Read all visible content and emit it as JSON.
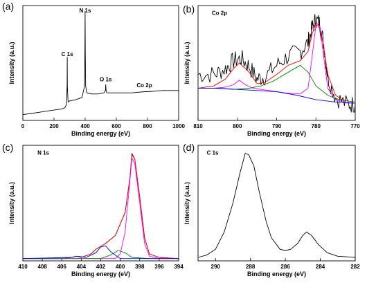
{
  "chart_data": [
    {
      "panel": "(a)",
      "type": "line",
      "xlabel": "Binding energy (eV)",
      "ylabel": "Intensity (a.u.)",
      "xlim": [
        0,
        1000
      ],
      "ylim": [
        0,
        1
      ],
      "xticks": [
        0,
        200,
        400,
        600,
        800,
        1000
      ],
      "x_reversed": false,
      "annotations": [
        {
          "text": "C 1s",
          "x": 285,
          "y": 0.56
        },
        {
          "text": "N 1s",
          "x": 400,
          "y": 0.94
        },
        {
          "text": "O 1s",
          "x": 532,
          "y": 0.34
        },
        {
          "text": "Co 2p",
          "x": 780,
          "y": 0.29
        }
      ],
      "series": [
        {
          "color": "#000000",
          "points": [
            [
              0,
              0.05
            ],
            [
              50,
              0.06
            ],
            [
              100,
              0.07
            ],
            [
              150,
              0.08
            ],
            [
              200,
              0.09
            ],
            [
              250,
              0.1
            ],
            [
              270,
              0.11
            ],
            [
              280,
              0.14
            ],
            [
              284,
              0.3
            ],
            [
              285,
              0.55
            ],
            [
              286,
              0.3
            ],
            [
              290,
              0.16
            ],
            [
              300,
              0.17
            ],
            [
              340,
              0.18
            ],
            [
              380,
              0.2
            ],
            [
              396,
              0.3
            ],
            [
              398,
              0.6
            ],
            [
              399.5,
              0.95
            ],
            [
              401,
              0.6
            ],
            [
              403,
              0.3
            ],
            [
              410,
              0.24
            ],
            [
              440,
              0.23
            ],
            [
              480,
              0.23
            ],
            [
              520,
              0.24
            ],
            [
              530,
              0.26
            ],
            [
              532,
              0.31
            ],
            [
              534,
              0.26
            ],
            [
              540,
              0.24
            ],
            [
              600,
              0.24
            ],
            [
              700,
              0.24
            ],
            [
              780,
              0.25
            ],
            [
              800,
              0.25
            ],
            [
              900,
              0.26
            ],
            [
              1000,
              0.26
            ]
          ]
        }
      ]
    },
    {
      "panel": "(b)",
      "type": "line",
      "xlabel": "Binding energy (eV)",
      "ylabel": "Intensity (a.u.)",
      "xlim": [
        810,
        770
      ],
      "ylim": [
        0,
        1
      ],
      "xticks": [
        810,
        800,
        790,
        780,
        770
      ],
      "x_reversed": true,
      "annotations": [
        {
          "text": "Co 2p",
          "x": 806.5,
          "y": 0.92
        }
      ],
      "series": [
        {
          "color": "#000000",
          "noisy": true,
          "points": [
            [
              810,
              0.4
            ],
            [
              806,
              0.4
            ],
            [
              803,
              0.45
            ],
            [
              801,
              0.52
            ],
            [
              799,
              0.54
            ],
            [
              797,
              0.47
            ],
            [
              795,
              0.36
            ],
            [
              793,
              0.38
            ],
            [
              790,
              0.48
            ],
            [
              787,
              0.56
            ],
            [
              784,
              0.6
            ],
            [
              782,
              0.68
            ],
            [
              781,
              0.8
            ],
            [
              780,
              0.88
            ],
            [
              779,
              0.84
            ],
            [
              778,
              0.66
            ],
            [
              777,
              0.38
            ],
            [
              775,
              0.2
            ],
            [
              772,
              0.14
            ],
            [
              770,
              0.14
            ]
          ]
        },
        {
          "color": "#ff0000",
          "points": [
            [
              810,
              0.28
            ],
            [
              806,
              0.3
            ],
            [
              803,
              0.36
            ],
            [
              801,
              0.45
            ],
            [
              799.5,
              0.5
            ],
            [
              797,
              0.42
            ],
            [
              795,
              0.32
            ],
            [
              793,
              0.33
            ],
            [
              790,
              0.4
            ],
            [
              787,
              0.48
            ],
            [
              784,
              0.52
            ],
            [
              782,
              0.6
            ],
            [
              781,
              0.75
            ],
            [
              780,
              0.85
            ],
            [
              779,
              0.82
            ],
            [
              778,
              0.64
            ],
            [
              777,
              0.4
            ],
            [
              775,
              0.22
            ],
            [
              772,
              0.15
            ],
            [
              770,
              0.15
            ]
          ]
        },
        {
          "color": "#ff00ff",
          "points": [
            [
              810,
              0.28
            ],
            [
              806,
              0.28
            ],
            [
              803,
              0.29
            ],
            [
              801,
              0.31
            ],
            [
              799.5,
              0.35
            ],
            [
              798,
              0.31
            ],
            [
              796,
              0.28
            ],
            [
              792,
              0.26
            ],
            [
              788,
              0.24
            ],
            [
              784,
              0.23
            ],
            [
              782,
              0.28
            ],
            [
              781,
              0.55
            ],
            [
              780,
              0.83
            ],
            [
              779,
              0.82
            ],
            [
              778,
              0.55
            ],
            [
              777,
              0.28
            ],
            [
              775,
              0.18
            ],
            [
              772,
              0.15
            ],
            [
              770,
              0.15
            ]
          ]
        },
        {
          "color": "#008000",
          "points": [
            [
              810,
              0.28
            ],
            [
              806,
              0.28
            ],
            [
              801,
              0.27
            ],
            [
              797,
              0.28
            ],
            [
              794,
              0.3
            ],
            [
              791,
              0.34
            ],
            [
              787,
              0.42
            ],
            [
              784,
              0.48
            ],
            [
              782,
              0.42
            ],
            [
              780,
              0.3
            ],
            [
              777,
              0.22
            ],
            [
              775,
              0.19
            ],
            [
              772,
              0.17
            ],
            [
              770,
              0.16
            ]
          ]
        },
        {
          "color": "#0000ff",
          "points": [
            [
              810,
              0.28
            ],
            [
              805,
              0.28
            ],
            [
              800,
              0.27
            ],
            [
              795,
              0.26
            ],
            [
              790,
              0.25
            ],
            [
              785,
              0.22
            ],
            [
              780,
              0.18
            ],
            [
              775,
              0.16
            ],
            [
              770,
              0.15
            ]
          ]
        }
      ]
    },
    {
      "panel": "(c)",
      "type": "line",
      "xlabel": "Binding energy (eV)",
      "ylabel": "Intensity (a.u.)",
      "xlim": [
        410,
        394
      ],
      "ylim": [
        0,
        1
      ],
      "xticks": [
        410,
        408,
        406,
        404,
        402,
        400,
        398,
        396,
        394
      ],
      "x_reversed": true,
      "annotations": [
        {
          "text": "N 1s",
          "x": 408.5,
          "y": 0.92
        }
      ],
      "series": [
        {
          "color": "#000000",
          "points": [
            [
              410,
              0.02
            ],
            [
              406,
              0.02
            ],
            [
              405,
              0.03
            ],
            [
              404.5,
              0.04
            ],
            [
              404,
              0.03
            ],
            [
              403,
              0.06
            ],
            [
              402.5,
              0.1
            ],
            [
              401.5,
              0.15
            ],
            [
              400.5,
              0.22
            ],
            [
              399.5,
              0.42
            ],
            [
              399,
              0.72
            ],
            [
              398.8,
              0.93
            ],
            [
              398.5,
              0.88
            ],
            [
              398,
              0.55
            ],
            [
              397.5,
              0.2
            ],
            [
              397,
              0.06
            ],
            [
              396,
              0.03
            ],
            [
              394,
              0.02
            ]
          ]
        },
        {
          "color": "#ff0000",
          "points": [
            [
              410,
              0.02
            ],
            [
              406,
              0.02
            ],
            [
              405,
              0.03
            ],
            [
              404.5,
              0.04
            ],
            [
              404,
              0.03
            ],
            [
              403,
              0.06
            ],
            [
              402.5,
              0.1
            ],
            [
              401.5,
              0.15
            ],
            [
              400.5,
              0.22
            ],
            [
              399.5,
              0.42
            ],
            [
              399,
              0.72
            ],
            [
              398.8,
              0.92
            ],
            [
              398.5,
              0.88
            ],
            [
              398,
              0.55
            ],
            [
              397.5,
              0.2
            ],
            [
              397,
              0.06
            ],
            [
              396,
              0.03
            ],
            [
              394,
              0.02
            ]
          ]
        },
        {
          "color": "#ff00ff",
          "points": [
            [
              410,
              0.02
            ],
            [
              400.5,
              0.02
            ],
            [
              400,
              0.06
            ],
            [
              399.5,
              0.25
            ],
            [
              399,
              0.7
            ],
            [
              398.8,
              0.89
            ],
            [
              398.5,
              0.84
            ],
            [
              398,
              0.5
            ],
            [
              397.5,
              0.15
            ],
            [
              397,
              0.04
            ],
            [
              396,
              0.02
            ],
            [
              394,
              0.02
            ]
          ]
        },
        {
          "color": "#008000",
          "points": [
            [
              410,
              0.02
            ],
            [
              402,
              0.02
            ],
            [
              401,
              0.05
            ],
            [
              400.2,
              0.09
            ],
            [
              399.5,
              0.07
            ],
            [
              398.8,
              0.03
            ],
            [
              397,
              0.02
            ],
            [
              394,
              0.02
            ]
          ]
        },
        {
          "color": "#0000ff",
          "points": [
            [
              410,
              0.02
            ],
            [
              405,
              0.03
            ],
            [
              404.4,
              0.04
            ],
            [
              403.5,
              0.03
            ],
            [
              402.5,
              0.07
            ],
            [
              402,
              0.12
            ],
            [
              401.5,
              0.13
            ],
            [
              401,
              0.08
            ],
            [
              400,
              0.02
            ],
            [
              394,
              0.02
            ]
          ]
        }
      ]
    },
    {
      "panel": "(d)",
      "type": "line",
      "xlabel": "Binding energy (eV)",
      "ylabel": "Intensity (a.u.)",
      "xlim": [
        291,
        282
      ],
      "ylim": [
        0,
        1
      ],
      "xticks": [
        290,
        288,
        286,
        284,
        282
      ],
      "x_reversed": true,
      "annotations": [
        {
          "text": "C 1s",
          "x": 290.5,
          "y": 0.92
        }
      ],
      "series": [
        {
          "color": "#000000",
          "points": [
            [
              291,
              0.03
            ],
            [
              290.5,
              0.05
            ],
            [
              290,
              0.1
            ],
            [
              289.5,
              0.25
            ],
            [
              289,
              0.5
            ],
            [
              288.6,
              0.76
            ],
            [
              288.3,
              0.93
            ],
            [
              288.1,
              0.92
            ],
            [
              287.8,
              0.82
            ],
            [
              287.5,
              0.6
            ],
            [
              287.1,
              0.34
            ],
            [
              286.8,
              0.2
            ],
            [
              286.3,
              0.1
            ],
            [
              286,
              0.09
            ],
            [
              285.7,
              0.1
            ],
            [
              285.3,
              0.15
            ],
            [
              285,
              0.22
            ],
            [
              284.8,
              0.25
            ],
            [
              284.5,
              0.22
            ],
            [
              284.1,
              0.14
            ],
            [
              283.6,
              0.07
            ],
            [
              283,
              0.04
            ],
            [
              282,
              0.03
            ]
          ]
        }
      ]
    }
  ]
}
